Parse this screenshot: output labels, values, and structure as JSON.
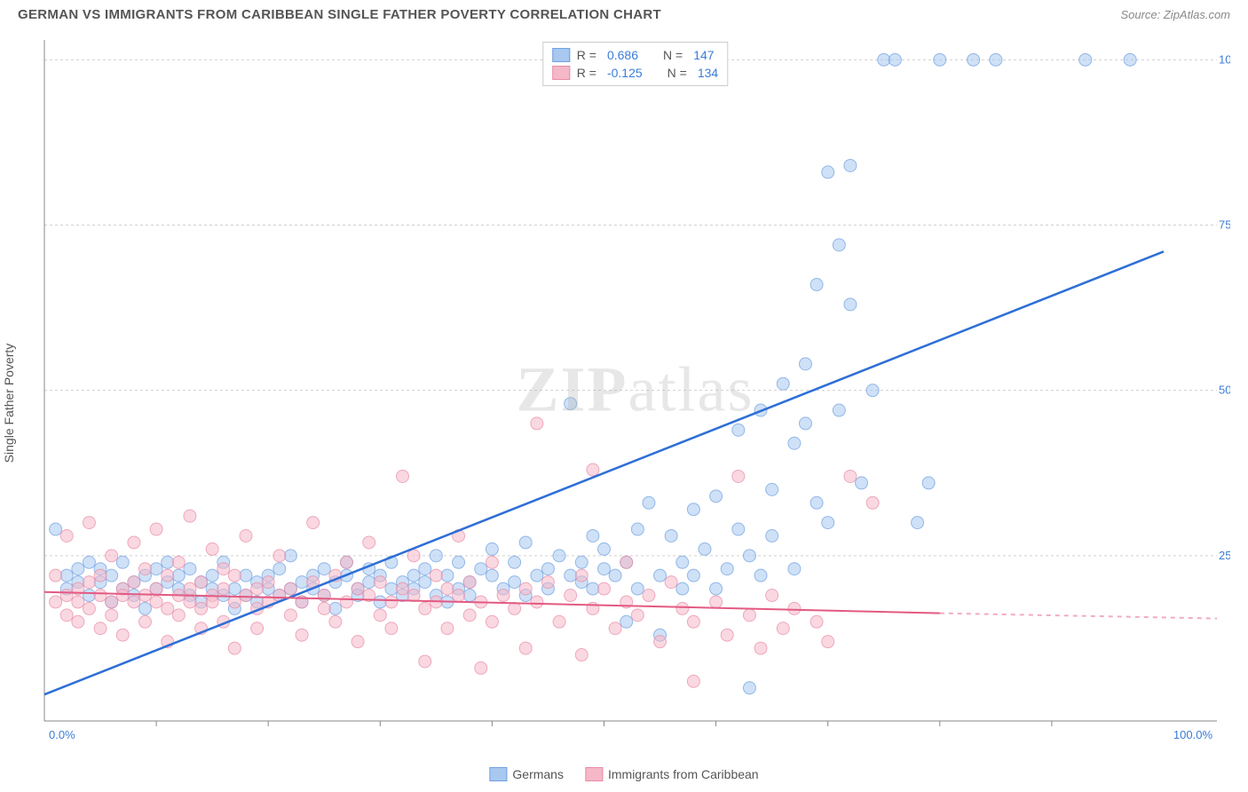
{
  "title": "GERMAN VS IMMIGRANTS FROM CARIBBEAN SINGLE FATHER POVERTY CORRELATION CHART",
  "source": "Source: ZipAtlas.com",
  "y_axis_label": "Single Father Poverty",
  "watermark": "ZIPatlas",
  "chart": {
    "type": "scatter",
    "xlim": [
      0,
      100
    ],
    "ylim": [
      0,
      103
    ],
    "x_ticks": [
      0,
      100
    ],
    "x_tick_labels": [
      "0.0%",
      "100.0%"
    ],
    "y_ticks": [
      25,
      50,
      75,
      100
    ],
    "y_tick_labels": [
      "25.0%",
      "50.0%",
      "75.0%",
      "100.0%"
    ],
    "minor_x_ticks": [
      10,
      20,
      30,
      40,
      50,
      60,
      70,
      80,
      90
    ],
    "grid_color": "#d0d0d0",
    "background_color": "#ffffff",
    "axis_color": "#888888",
    "series": [
      {
        "name": "Germans",
        "color_fill": "#a8c8f0",
        "color_stroke": "#6fa0e0",
        "trend_color": "#2e6fd6",
        "marker_radius": 7,
        "marker_opacity": 0.55,
        "r": 0.686,
        "n": 147,
        "trend": {
          "x1": 0,
          "y1": 4,
          "x2": 100,
          "y2": 71,
          "dashed_from": null
        },
        "points": [
          [
            1,
            29
          ],
          [
            2,
            22
          ],
          [
            2,
            20
          ],
          [
            3,
            23
          ],
          [
            3,
            21
          ],
          [
            4,
            24
          ],
          [
            4,
            19
          ],
          [
            5,
            21
          ],
          [
            5,
            23
          ],
          [
            6,
            22
          ],
          [
            6,
            18
          ],
          [
            7,
            20
          ],
          [
            7,
            24
          ],
          [
            8,
            21
          ],
          [
            8,
            19
          ],
          [
            9,
            22
          ],
          [
            9,
            17
          ],
          [
            10,
            20
          ],
          [
            10,
            23
          ],
          [
            11,
            21
          ],
          [
            11,
            24
          ],
          [
            12,
            20
          ],
          [
            12,
            22
          ],
          [
            13,
            19
          ],
          [
            13,
            23
          ],
          [
            14,
            21
          ],
          [
            14,
            18
          ],
          [
            15,
            20
          ],
          [
            15,
            22
          ],
          [
            16,
            19
          ],
          [
            16,
            24
          ],
          [
            17,
            20
          ],
          [
            17,
            17
          ],
          [
            18,
            19
          ],
          [
            18,
            22
          ],
          [
            19,
            21
          ],
          [
            19,
            18
          ],
          [
            20,
            22
          ],
          [
            20,
            20
          ],
          [
            21,
            23
          ],
          [
            21,
            19
          ],
          [
            22,
            20
          ],
          [
            22,
            25
          ],
          [
            23,
            21
          ],
          [
            23,
            18
          ],
          [
            24,
            22
          ],
          [
            24,
            20
          ],
          [
            25,
            19
          ],
          [
            25,
            23
          ],
          [
            26,
            21
          ],
          [
            26,
            17
          ],
          [
            27,
            22
          ],
          [
            27,
            24
          ],
          [
            28,
            20
          ],
          [
            28,
            19
          ],
          [
            29,
            21
          ],
          [
            29,
            23
          ],
          [
            30,
            22
          ],
          [
            30,
            18
          ],
          [
            31,
            20
          ],
          [
            31,
            24
          ],
          [
            32,
            21
          ],
          [
            32,
            19
          ],
          [
            33,
            22
          ],
          [
            33,
            20
          ],
          [
            34,
            23
          ],
          [
            34,
            21
          ],
          [
            35,
            19
          ],
          [
            35,
            25
          ],
          [
            36,
            22
          ],
          [
            36,
            18
          ],
          [
            37,
            20
          ],
          [
            37,
            24
          ],
          [
            38,
            21
          ],
          [
            38,
            19
          ],
          [
            39,
            23
          ],
          [
            40,
            22
          ],
          [
            40,
            26
          ],
          [
            41,
            20
          ],
          [
            42,
            24
          ],
          [
            42,
            21
          ],
          [
            43,
            19
          ],
          [
            43,
            27
          ],
          [
            44,
            22
          ],
          [
            45,
            23
          ],
          [
            45,
            20
          ],
          [
            46,
            25
          ],
          [
            47,
            22
          ],
          [
            47,
            48
          ],
          [
            48,
            24
          ],
          [
            48,
            21
          ],
          [
            49,
            20
          ],
          [
            49,
            28
          ],
          [
            50,
            23
          ],
          [
            50,
            26
          ],
          [
            51,
            22
          ],
          [
            52,
            24
          ],
          [
            52,
            15
          ],
          [
            53,
            20
          ],
          [
            53,
            29
          ],
          [
            54,
            33
          ],
          [
            55,
            22
          ],
          [
            55,
            13
          ],
          [
            56,
            28
          ],
          [
            57,
            24
          ],
          [
            57,
            20
          ],
          [
            58,
            32
          ],
          [
            58,
            22
          ],
          [
            59,
            26
          ],
          [
            60,
            34
          ],
          [
            60,
            20
          ],
          [
            61,
            23
          ],
          [
            62,
            29
          ],
          [
            62,
            44
          ],
          [
            63,
            25
          ],
          [
            63,
            5
          ],
          [
            64,
            47
          ],
          [
            64,
            22
          ],
          [
            65,
            35
          ],
          [
            65,
            28
          ],
          [
            66,
            51
          ],
          [
            67,
            23
          ],
          [
            67,
            42
          ],
          [
            68,
            45
          ],
          [
            68,
            54
          ],
          [
            69,
            33
          ],
          [
            69,
            66
          ],
          [
            70,
            30
          ],
          [
            70,
            83
          ],
          [
            71,
            72
          ],
          [
            71,
            47
          ],
          [
            72,
            63
          ],
          [
            72,
            84
          ],
          [
            73,
            36
          ],
          [
            74,
            50
          ],
          [
            75,
            100
          ],
          [
            76,
            100
          ],
          [
            78,
            30
          ],
          [
            79,
            36
          ],
          [
            80,
            100
          ],
          [
            83,
            100
          ],
          [
            85,
            100
          ],
          [
            93,
            100
          ],
          [
            97,
            100
          ]
        ]
      },
      {
        "name": "Immigrants from Caribbean",
        "color_fill": "#f5b8c8",
        "color_stroke": "#e88ba5",
        "trend_color": "#e35a82",
        "marker_radius": 7,
        "marker_opacity": 0.55,
        "r": -0.125,
        "n": 134,
        "trend": {
          "x1": 0,
          "y1": 19.5,
          "x2": 100,
          "y2": 15.5,
          "dashed_from": 80
        },
        "points": [
          [
            1,
            18
          ],
          [
            1,
            22
          ],
          [
            2,
            19
          ],
          [
            2,
            16
          ],
          [
            2,
            28
          ],
          [
            3,
            20
          ],
          [
            3,
            18
          ],
          [
            3,
            15
          ],
          [
            4,
            21
          ],
          [
            4,
            17
          ],
          [
            4,
            30
          ],
          [
            5,
            19
          ],
          [
            5,
            22
          ],
          [
            5,
            14
          ],
          [
            6,
            18
          ],
          [
            6,
            25
          ],
          [
            6,
            16
          ],
          [
            7,
            20
          ],
          [
            7,
            19
          ],
          [
            7,
            13
          ],
          [
            8,
            27
          ],
          [
            8,
            18
          ],
          [
            8,
            21
          ],
          [
            9,
            19
          ],
          [
            9,
            15
          ],
          [
            9,
            23
          ],
          [
            10,
            18
          ],
          [
            10,
            20
          ],
          [
            10,
            29
          ],
          [
            11,
            17
          ],
          [
            11,
            22
          ],
          [
            11,
            12
          ],
          [
            12,
            19
          ],
          [
            12,
            24
          ],
          [
            12,
            16
          ],
          [
            13,
            20
          ],
          [
            13,
            18
          ],
          [
            13,
            31
          ],
          [
            14,
            17
          ],
          [
            14,
            21
          ],
          [
            14,
            14
          ],
          [
            15,
            19
          ],
          [
            15,
            26
          ],
          [
            15,
            18
          ],
          [
            16,
            20
          ],
          [
            16,
            15
          ],
          [
            16,
            23
          ],
          [
            17,
            18
          ],
          [
            17,
            11
          ],
          [
            17,
            22
          ],
          [
            18,
            19
          ],
          [
            18,
            28
          ],
          [
            19,
            17
          ],
          [
            19,
            20
          ],
          [
            19,
            14
          ],
          [
            20,
            21
          ],
          [
            20,
            18
          ],
          [
            21,
            19
          ],
          [
            21,
            25
          ],
          [
            22,
            16
          ],
          [
            22,
            20
          ],
          [
            23,
            18
          ],
          [
            23,
            13
          ],
          [
            24,
            21
          ],
          [
            24,
            30
          ],
          [
            25,
            17
          ],
          [
            25,
            19
          ],
          [
            26,
            22
          ],
          [
            26,
            15
          ],
          [
            27,
            18
          ],
          [
            27,
            24
          ],
          [
            28,
            20
          ],
          [
            28,
            12
          ],
          [
            29,
            19
          ],
          [
            29,
            27
          ],
          [
            30,
            16
          ],
          [
            30,
            21
          ],
          [
            31,
            18
          ],
          [
            31,
            14
          ],
          [
            32,
            37
          ],
          [
            32,
            20
          ],
          [
            33,
            19
          ],
          [
            33,
            25
          ],
          [
            34,
            17
          ],
          [
            34,
            9
          ],
          [
            35,
            22
          ],
          [
            35,
            18
          ],
          [
            36,
            20
          ],
          [
            36,
            14
          ],
          [
            37,
            19
          ],
          [
            37,
            28
          ],
          [
            38,
            16
          ],
          [
            38,
            21
          ],
          [
            39,
            8
          ],
          [
            39,
            18
          ],
          [
            40,
            24
          ],
          [
            40,
            15
          ],
          [
            41,
            19
          ],
          [
            42,
            17
          ],
          [
            43,
            20
          ],
          [
            43,
            11
          ],
          [
            44,
            45
          ],
          [
            44,
            18
          ],
          [
            45,
            21
          ],
          [
            46,
            15
          ],
          [
            47,
            19
          ],
          [
            48,
            22
          ],
          [
            48,
            10
          ],
          [
            49,
            38
          ],
          [
            49,
            17
          ],
          [
            50,
            20
          ],
          [
            51,
            14
          ],
          [
            52,
            18
          ],
          [
            52,
            24
          ],
          [
            53,
            16
          ],
          [
            54,
            19
          ],
          [
            55,
            12
          ],
          [
            56,
            21
          ],
          [
            57,
            17
          ],
          [
            58,
            15
          ],
          [
            58,
            6
          ],
          [
            60,
            18
          ],
          [
            61,
            13
          ],
          [
            62,
            37
          ],
          [
            63,
            16
          ],
          [
            64,
            11
          ],
          [
            65,
            19
          ],
          [
            66,
            14
          ],
          [
            67,
            17
          ],
          [
            69,
            15
          ],
          [
            70,
            12
          ],
          [
            72,
            37
          ],
          [
            74,
            33
          ]
        ]
      }
    ]
  },
  "legend_top": {
    "r_label": "R =",
    "n_label": "N ="
  },
  "legend_bottom": [
    {
      "label": "Germans",
      "fill": "#a8c8f0",
      "stroke": "#6fa0e0"
    },
    {
      "label": "Immigrants from Caribbean",
      "fill": "#f5b8c8",
      "stroke": "#e88ba5"
    }
  ]
}
